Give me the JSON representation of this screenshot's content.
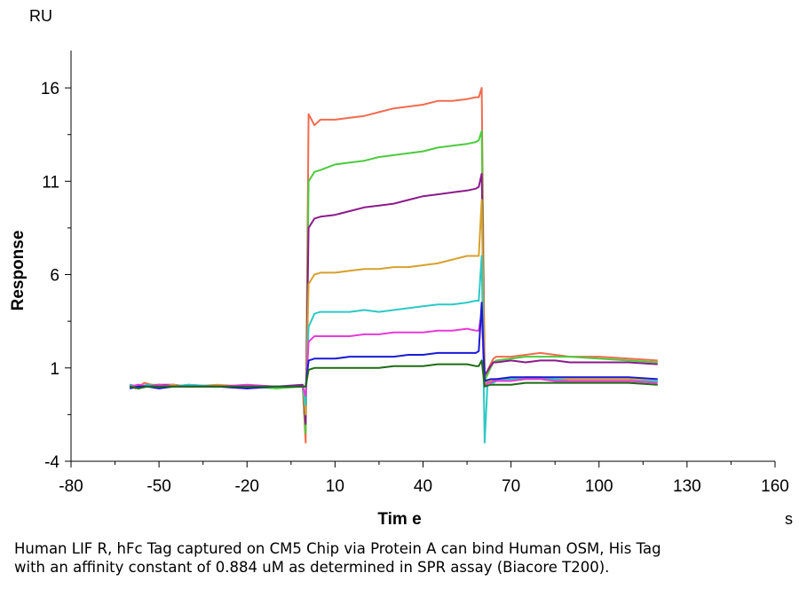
{
  "chart_data": {
    "type": "line",
    "xlabel": "Tim e",
    "ylabel": "Response",
    "y_unit": "RU",
    "x_unit": "s",
    "xlim": [
      -80,
      160
    ],
    "ylim": [
      -4,
      18
    ],
    "x_ticks": [
      -80,
      -50,
      -20,
      10,
      40,
      70,
      100,
      130,
      160
    ],
    "y_ticks": [
      -4,
      1,
      6,
      11,
      16
    ],
    "grid": false,
    "legend": "none",
    "series": [
      {
        "color": "#f26b4e",
        "points": [
          [
            -60,
            0.1
          ],
          [
            -58,
            -0.1
          ],
          [
            -55,
            0.2
          ],
          [
            -50,
            0.0
          ],
          [
            -45,
            0.1
          ],
          [
            -40,
            0.0
          ],
          [
            -30,
            0.0
          ],
          [
            -20,
            -0.1
          ],
          [
            -10,
            0.0
          ],
          [
            -1,
            0.0
          ],
          [
            0,
            -3.0
          ],
          [
            1,
            14.6
          ],
          [
            3,
            14.0
          ],
          [
            5,
            14.3
          ],
          [
            10,
            14.3
          ],
          [
            15,
            14.4
          ],
          [
            20,
            14.5
          ],
          [
            25,
            14.7
          ],
          [
            30,
            14.9
          ],
          [
            35,
            15.0
          ],
          [
            40,
            15.1
          ],
          [
            45,
            15.3
          ],
          [
            50,
            15.3
          ],
          [
            55,
            15.4
          ],
          [
            58,
            15.5
          ],
          [
            59,
            15.5
          ],
          [
            60,
            16.0
          ],
          [
            61,
            0.5
          ],
          [
            63,
            1.2
          ],
          [
            64,
            1.5
          ],
          [
            65,
            1.6
          ],
          [
            70,
            1.6
          ],
          [
            75,
            1.7
          ],
          [
            80,
            1.8
          ],
          [
            85,
            1.7
          ],
          [
            90,
            1.6
          ],
          [
            100,
            1.6
          ],
          [
            110,
            1.5
          ],
          [
            120,
            1.4
          ]
        ]
      },
      {
        "color": "#4ccb3c",
        "points": [
          [
            -60,
            0.0
          ],
          [
            -57,
            -0.1
          ],
          [
            -54,
            0.1
          ],
          [
            -50,
            0.1
          ],
          [
            -45,
            0.0
          ],
          [
            -40,
            0.1
          ],
          [
            -30,
            0.0
          ],
          [
            -20,
            0.0
          ],
          [
            -10,
            -0.1
          ],
          [
            -1,
            0.0
          ],
          [
            0,
            -2.5
          ],
          [
            1,
            11.0
          ],
          [
            3,
            11.5
          ],
          [
            5,
            11.6
          ],
          [
            10,
            11.9
          ],
          [
            15,
            12.0
          ],
          [
            20,
            12.1
          ],
          [
            25,
            12.3
          ],
          [
            30,
            12.4
          ],
          [
            35,
            12.5
          ],
          [
            40,
            12.6
          ],
          [
            45,
            12.8
          ],
          [
            50,
            12.9
          ],
          [
            55,
            13.0
          ],
          [
            58,
            13.1
          ],
          [
            59,
            13.2
          ],
          [
            60,
            13.7
          ],
          [
            61,
            0.3
          ],
          [
            63,
            1.0
          ],
          [
            64,
            1.3
          ],
          [
            65,
            1.4
          ],
          [
            70,
            1.5
          ],
          [
            75,
            1.6
          ],
          [
            80,
            1.6
          ],
          [
            85,
            1.6
          ],
          [
            90,
            1.6
          ],
          [
            100,
            1.5
          ],
          [
            110,
            1.4
          ],
          [
            120,
            1.3
          ]
        ]
      },
      {
        "color": "#8b1a8b",
        "points": [
          [
            -60,
            0.1
          ],
          [
            -57,
            0.0
          ],
          [
            -54,
            0.0
          ],
          [
            -50,
            0.1
          ],
          [
            -45,
            0.1
          ],
          [
            -40,
            0.0
          ],
          [
            -30,
            0.0
          ],
          [
            -20,
            0.0
          ],
          [
            -10,
            0.0
          ],
          [
            -1,
            0.1
          ],
          [
            0,
            -2.0
          ],
          [
            1,
            8.5
          ],
          [
            3,
            9.0
          ],
          [
            5,
            9.1
          ],
          [
            10,
            9.2
          ],
          [
            15,
            9.4
          ],
          [
            20,
            9.6
          ],
          [
            25,
            9.7
          ],
          [
            30,
            9.8
          ],
          [
            35,
            10.0
          ],
          [
            40,
            10.2
          ],
          [
            45,
            10.3
          ],
          [
            50,
            10.4
          ],
          [
            55,
            10.5
          ],
          [
            58,
            10.6
          ],
          [
            59,
            10.7
          ],
          [
            60,
            11.4
          ],
          [
            61,
            0.6
          ],
          [
            63,
            1.1
          ],
          [
            64,
            1.3
          ],
          [
            65,
            1.3
          ],
          [
            70,
            1.4
          ],
          [
            75,
            1.3
          ],
          [
            80,
            1.4
          ],
          [
            85,
            1.4
          ],
          [
            90,
            1.3
          ],
          [
            100,
            1.3
          ],
          [
            110,
            1.3
          ],
          [
            120,
            1.2
          ]
        ]
      },
      {
        "color": "#d6a12c",
        "points": [
          [
            -60,
            0.0
          ],
          [
            -57,
            0.1
          ],
          [
            -54,
            0.0
          ],
          [
            -50,
            0.0
          ],
          [
            -45,
            0.1
          ],
          [
            -40,
            0.0
          ],
          [
            -30,
            0.1
          ],
          [
            -20,
            0.0
          ],
          [
            -10,
            0.0
          ],
          [
            -1,
            0.0
          ],
          [
            0,
            -1.5
          ],
          [
            1,
            5.5
          ],
          [
            3,
            6.0
          ],
          [
            5,
            6.1
          ],
          [
            10,
            6.1
          ],
          [
            15,
            6.2
          ],
          [
            20,
            6.3
          ],
          [
            25,
            6.3
          ],
          [
            30,
            6.4
          ],
          [
            35,
            6.4
          ],
          [
            40,
            6.5
          ],
          [
            45,
            6.6
          ],
          [
            50,
            6.8
          ],
          [
            55,
            7.0
          ],
          [
            58,
            7.0
          ],
          [
            59,
            7.0
          ],
          [
            60,
            10.0
          ],
          [
            61,
            0.2
          ],
          [
            63,
            0.3
          ],
          [
            64,
            0.4
          ],
          [
            65,
            0.4
          ],
          [
            70,
            0.4
          ],
          [
            75,
            0.5
          ],
          [
            80,
            0.5
          ],
          [
            85,
            0.4
          ],
          [
            90,
            0.4
          ],
          [
            100,
            0.4
          ],
          [
            110,
            0.4
          ],
          [
            120,
            0.3
          ]
        ]
      },
      {
        "color": "#2cc9c4",
        "points": [
          [
            -60,
            0.1
          ],
          [
            -57,
            0.0
          ],
          [
            -54,
            0.1
          ],
          [
            -50,
            0.0
          ],
          [
            -45,
            0.0
          ],
          [
            -40,
            0.1
          ],
          [
            -30,
            0.0
          ],
          [
            -20,
            0.0
          ],
          [
            -10,
            0.0
          ],
          [
            -1,
            0.0
          ],
          [
            0,
            -1.0
          ],
          [
            1,
            3.2
          ],
          [
            3,
            3.9
          ],
          [
            5,
            4.0
          ],
          [
            10,
            4.0
          ],
          [
            15,
            4.0
          ],
          [
            20,
            4.1
          ],
          [
            25,
            4.0
          ],
          [
            30,
            4.1
          ],
          [
            35,
            4.2
          ],
          [
            40,
            4.3
          ],
          [
            45,
            4.4
          ],
          [
            50,
            4.4
          ],
          [
            55,
            4.5
          ],
          [
            58,
            4.6
          ],
          [
            59,
            4.6
          ],
          [
            60,
            7.0
          ],
          [
            61,
            -3.0
          ],
          [
            62,
            0.2
          ],
          [
            63,
            0.2
          ],
          [
            64,
            0.2
          ],
          [
            65,
            0.3
          ],
          [
            70,
            0.4
          ],
          [
            75,
            0.4
          ],
          [
            80,
            0.4
          ],
          [
            85,
            0.4
          ],
          [
            90,
            0.3
          ],
          [
            100,
            0.3
          ],
          [
            110,
            0.3
          ],
          [
            120,
            0.3
          ]
        ]
      },
      {
        "color": "#e83ad6",
        "points": [
          [
            -60,
            0.0
          ],
          [
            -57,
            0.1
          ],
          [
            -54,
            0.0
          ],
          [
            -50,
            0.1
          ],
          [
            -45,
            0.0
          ],
          [
            -40,
            0.0
          ],
          [
            -30,
            0.0
          ],
          [
            -20,
            0.1
          ],
          [
            -10,
            0.0
          ],
          [
            -1,
            0.0
          ],
          [
            0,
            -0.5
          ],
          [
            1,
            2.4
          ],
          [
            3,
            2.7
          ],
          [
            5,
            2.7
          ],
          [
            10,
            2.7
          ],
          [
            15,
            2.7
          ],
          [
            20,
            2.8
          ],
          [
            25,
            2.8
          ],
          [
            30,
            2.9
          ],
          [
            35,
            2.9
          ],
          [
            40,
            2.9
          ],
          [
            45,
            3.0
          ],
          [
            50,
            3.0
          ],
          [
            55,
            3.1
          ],
          [
            58,
            3.0
          ],
          [
            59,
            3.0
          ],
          [
            60,
            4.0
          ],
          [
            61,
            0.0
          ],
          [
            62,
            0.2
          ],
          [
            63,
            0.2
          ],
          [
            64,
            0.3
          ],
          [
            65,
            0.3
          ],
          [
            70,
            0.3
          ],
          [
            75,
            0.4
          ],
          [
            80,
            0.4
          ],
          [
            85,
            0.3
          ],
          [
            90,
            0.3
          ],
          [
            100,
            0.3
          ],
          [
            110,
            0.3
          ],
          [
            120,
            0.2
          ]
        ]
      },
      {
        "color": "#1a1ad6",
        "points": [
          [
            -60,
            -0.1
          ],
          [
            -57,
            0.0
          ],
          [
            -54,
            0.0
          ],
          [
            -50,
            -0.1
          ],
          [
            -45,
            0.0
          ],
          [
            -40,
            0.0
          ],
          [
            -30,
            0.0
          ],
          [
            -20,
            -0.1
          ],
          [
            -10,
            0.0
          ],
          [
            -1,
            0.0
          ],
          [
            0,
            0.0
          ],
          [
            1,
            1.4
          ],
          [
            3,
            1.5
          ],
          [
            5,
            1.5
          ],
          [
            10,
            1.5
          ],
          [
            15,
            1.6
          ],
          [
            20,
            1.6
          ],
          [
            25,
            1.6
          ],
          [
            30,
            1.6
          ],
          [
            35,
            1.7
          ],
          [
            40,
            1.7
          ],
          [
            45,
            1.8
          ],
          [
            50,
            1.8
          ],
          [
            55,
            1.8
          ],
          [
            58,
            1.8
          ],
          [
            59,
            1.9
          ],
          [
            60,
            4.5
          ],
          [
            61,
            0.3
          ],
          [
            63,
            0.4
          ],
          [
            64,
            0.4
          ],
          [
            65,
            0.4
          ],
          [
            70,
            0.5
          ],
          [
            75,
            0.5
          ],
          [
            80,
            0.5
          ],
          [
            85,
            0.5
          ],
          [
            90,
            0.5
          ],
          [
            100,
            0.5
          ],
          [
            110,
            0.5
          ],
          [
            120,
            0.4
          ]
        ]
      },
      {
        "color": "#1e6b14",
        "points": [
          [
            -60,
            0.0
          ],
          [
            -57,
            -0.1
          ],
          [
            -54,
            0.0
          ],
          [
            -50,
            0.0
          ],
          [
            -45,
            0.0
          ],
          [
            -40,
            0.0
          ],
          [
            -30,
            0.0
          ],
          [
            -20,
            0.0
          ],
          [
            -10,
            0.0
          ],
          [
            -1,
            0.0
          ],
          [
            0,
            0.0
          ],
          [
            1,
            0.9
          ],
          [
            3,
            1.0
          ],
          [
            5,
            1.0
          ],
          [
            10,
            1.0
          ],
          [
            15,
            1.0
          ],
          [
            20,
            1.0
          ],
          [
            25,
            1.0
          ],
          [
            30,
            1.1
          ],
          [
            35,
            1.1
          ],
          [
            40,
            1.1
          ],
          [
            45,
            1.2
          ],
          [
            50,
            1.2
          ],
          [
            55,
            1.2
          ],
          [
            58,
            1.1
          ],
          [
            59,
            1.1
          ],
          [
            60,
            1.4
          ],
          [
            61,
            0.0
          ],
          [
            63,
            0.1
          ],
          [
            64,
            0.1
          ],
          [
            65,
            0.1
          ],
          [
            70,
            0.1
          ],
          [
            75,
            0.2
          ],
          [
            80,
            0.2
          ],
          [
            85,
            0.2
          ],
          [
            90,
            0.2
          ],
          [
            100,
            0.2
          ],
          [
            110,
            0.2
          ],
          [
            120,
            0.1
          ]
        ]
      }
    ]
  },
  "caption": {
    "line1": "Human LIF R, hFc Tag captured on CM5 Chip via Protein A can bind Human OSM, His Tag",
    "line2": "with an affinity constant of 0.884 uM as determined in SPR assay (Biacore T200)."
  }
}
